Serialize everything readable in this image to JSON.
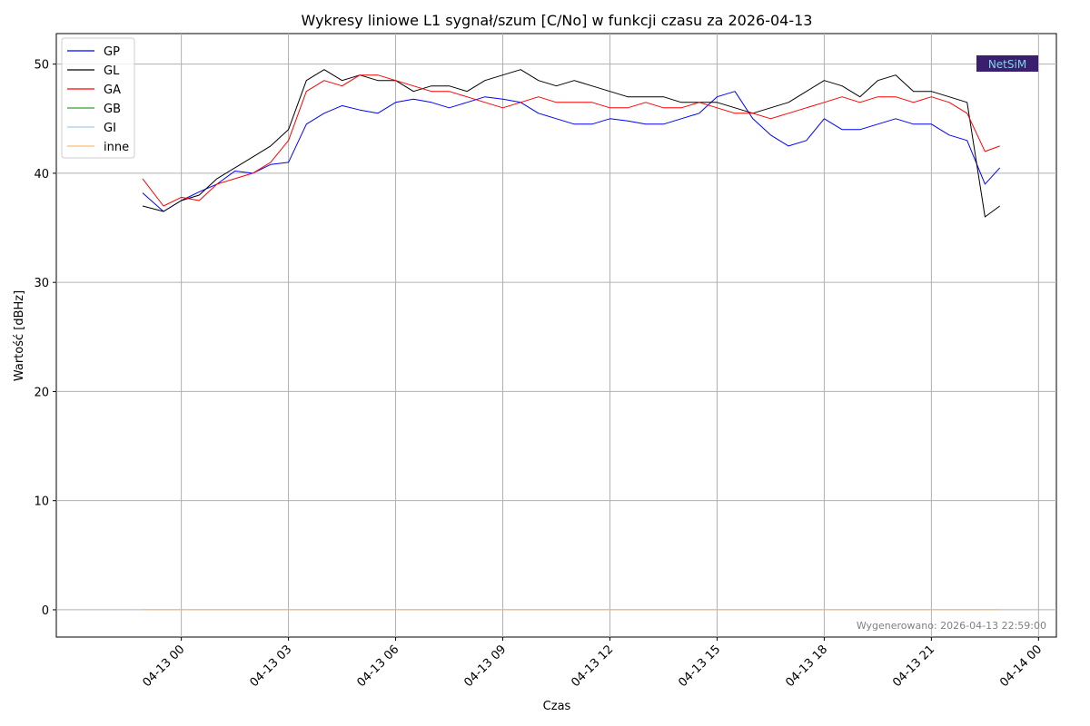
{
  "chart_data": {
    "type": "line",
    "title": "Wykresy liniowe L1 sygnał/szum [C/No] w funkcji czasu za 2026-04-13",
    "xlabel": "Czas",
    "ylabel": "Wartość [dBHz]",
    "xlim": [
      "2026-04-12 20:30",
      "2026-04-14 00:30"
    ],
    "ylim": [
      -2.5,
      52.8
    ],
    "x_ticks": [
      "04-13 00",
      "04-13 03",
      "04-13 06",
      "04-13 09",
      "04-13 12",
      "04-13 15",
      "04-13 18",
      "04-13 21",
      "04-14 00"
    ],
    "y_ticks": [
      0,
      10,
      20,
      30,
      40,
      50
    ],
    "grid": true,
    "legend_position": "top-left",
    "x": [
      "2026-04-12 22:55",
      "2026-04-12 23:30",
      "2026-04-13 00:00",
      "2026-04-13 00:30",
      "2026-04-13 01:00",
      "2026-04-13 01:30",
      "2026-04-13 02:00",
      "2026-04-13 02:30",
      "2026-04-13 03:00",
      "2026-04-13 03:30",
      "2026-04-13 04:00",
      "2026-04-13 04:30",
      "2026-04-13 05:00",
      "2026-04-13 05:30",
      "2026-04-13 06:00",
      "2026-04-13 06:30",
      "2026-04-13 07:00",
      "2026-04-13 07:30",
      "2026-04-13 08:00",
      "2026-04-13 08:30",
      "2026-04-13 09:00",
      "2026-04-13 09:30",
      "2026-04-13 10:00",
      "2026-04-13 10:30",
      "2026-04-13 11:00",
      "2026-04-13 11:30",
      "2026-04-13 12:00",
      "2026-04-13 12:30",
      "2026-04-13 13:00",
      "2026-04-13 13:30",
      "2026-04-13 14:00",
      "2026-04-13 14:30",
      "2026-04-13 15:00",
      "2026-04-13 15:30",
      "2026-04-13 16:00",
      "2026-04-13 16:30",
      "2026-04-13 17:00",
      "2026-04-13 17:30",
      "2026-04-13 18:00",
      "2026-04-13 18:30",
      "2026-04-13 19:00",
      "2026-04-13 19:30",
      "2026-04-13 20:00",
      "2026-04-13 20:30",
      "2026-04-13 21:00",
      "2026-04-13 21:30",
      "2026-04-13 22:00",
      "2026-04-13 22:30",
      "2026-04-13 22:55"
    ],
    "series": [
      {
        "name": "GP",
        "color": "#0000ff",
        "values": [
          38.2,
          36.5,
          37.5,
          38.3,
          39.0,
          40.2,
          40.0,
          40.8,
          41.0,
          44.5,
          45.5,
          46.2,
          45.8,
          45.5,
          46.5,
          46.8,
          46.5,
          46.0,
          46.5,
          47.0,
          46.8,
          46.5,
          45.5,
          45.0,
          44.5,
          44.5,
          45.0,
          44.8,
          44.5,
          44.5,
          45.0,
          45.5,
          47.0,
          47.5,
          45.0,
          43.5,
          42.5,
          43.0,
          45.0,
          44.0,
          44.0,
          44.5,
          45.0,
          44.5,
          44.5,
          43.5,
          43.0,
          39.0,
          40.5
        ]
      },
      {
        "name": "GL",
        "color": "#000000",
        "values": [
          37.0,
          36.5,
          37.5,
          38.0,
          39.5,
          40.5,
          41.5,
          42.5,
          44.0,
          48.5,
          49.5,
          48.5,
          49.0,
          48.5,
          48.5,
          47.5,
          48.0,
          48.0,
          47.5,
          48.5,
          49.0,
          49.5,
          48.5,
          48.0,
          48.5,
          48.0,
          47.5,
          47.0,
          47.0,
          47.0,
          46.5,
          46.5,
          46.5,
          46.0,
          45.5,
          46.0,
          46.5,
          47.5,
          48.5,
          48.0,
          47.0,
          48.5,
          49.0,
          47.5,
          47.5,
          47.0,
          46.5,
          36.0,
          37.0
        ]
      },
      {
        "name": "GA",
        "color": "#ff0000",
        "values": [
          39.5,
          37.0,
          37.8,
          37.5,
          39.0,
          39.5,
          40.0,
          41.0,
          43.0,
          47.5,
          48.5,
          48.0,
          49.0,
          49.0,
          48.5,
          48.0,
          47.5,
          47.5,
          47.0,
          46.5,
          46.0,
          46.5,
          47.0,
          46.5,
          46.5,
          46.5,
          46.0,
          46.0,
          46.5,
          46.0,
          46.0,
          46.5,
          46.0,
          45.5,
          45.5,
          45.0,
          45.5,
          46.0,
          46.5,
          47.0,
          46.5,
          47.0,
          47.0,
          46.5,
          47.0,
          46.5,
          45.5,
          42.0,
          42.5
        ]
      },
      {
        "name": "GB",
        "color": "#2ca02c",
        "values": [
          0,
          0,
          0,
          0,
          0,
          0,
          0,
          0,
          0,
          0,
          0,
          0,
          0,
          0,
          0,
          0,
          0,
          0,
          0,
          0,
          0,
          0,
          0,
          0,
          0,
          0,
          0,
          0,
          0,
          0,
          0,
          0,
          0,
          0,
          0,
          0,
          0,
          0,
          0,
          0,
          0,
          0,
          0,
          0,
          0,
          0,
          0,
          0,
          0
        ]
      },
      {
        "name": "GI",
        "color": "#aec7e8",
        "values": [
          0,
          0,
          0,
          0,
          0,
          0,
          0,
          0,
          0,
          0,
          0,
          0,
          0,
          0,
          0,
          0,
          0,
          0,
          0,
          0,
          0,
          0,
          0,
          0,
          0,
          0,
          0,
          0,
          0,
          0,
          0,
          0,
          0,
          0,
          0,
          0,
          0,
          0,
          0,
          0,
          0,
          0,
          0,
          0,
          0,
          0,
          0,
          0,
          0
        ]
      },
      {
        "name": "inne",
        "color": "#ffbb78",
        "values": [
          0,
          0,
          0,
          0,
          0,
          0,
          0,
          0,
          0,
          0,
          0,
          0,
          0,
          0,
          0,
          0,
          0,
          0,
          0,
          0,
          0,
          0,
          0,
          0,
          0,
          0,
          0,
          0,
          0,
          0,
          0,
          0,
          0,
          0,
          0,
          0,
          0,
          0,
          0,
          0,
          0,
          0,
          0,
          0,
          0,
          0,
          0,
          0,
          0
        ]
      }
    ],
    "annotations": {
      "generated": "Wygenerowano: 2026-04-13 22:59:00",
      "logo": "NetSiM"
    }
  }
}
